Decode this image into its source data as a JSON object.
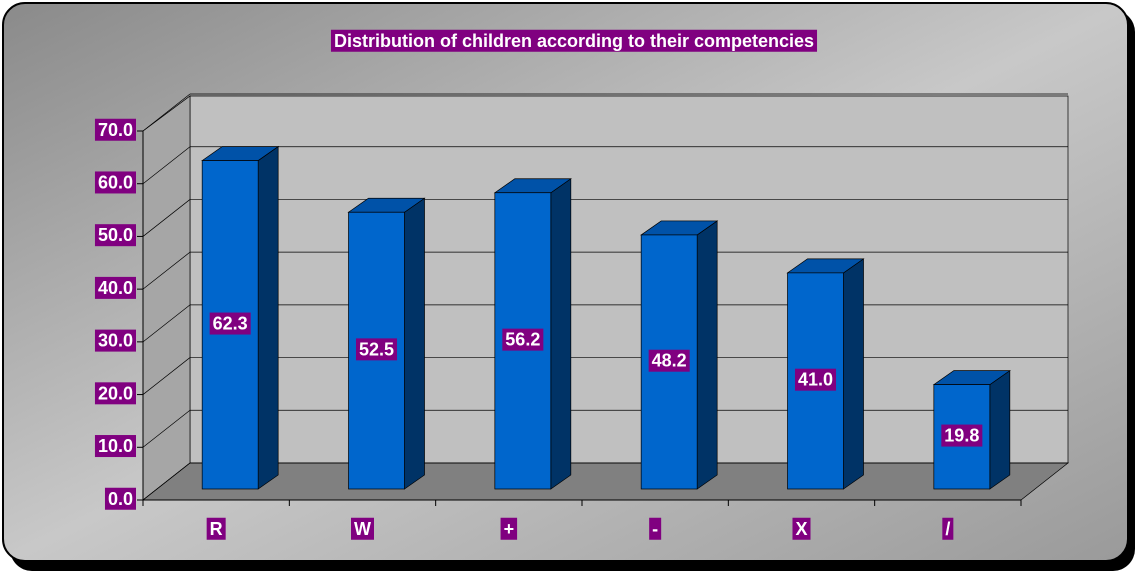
{
  "chart_data": {
    "type": "bar3d",
    "title": "Distribution of children according to their competencies",
    "categories": [
      "R",
      "W",
      "+",
      "-",
      "X",
      "/"
    ],
    "values": [
      62.3,
      52.5,
      56.2,
      48.2,
      41.0,
      19.8
    ],
    "value_labels": [
      "62.3",
      "52.5",
      "56.2",
      "48.2",
      "41.0",
      "19.8"
    ],
    "color": "#0066cc",
    "ylim": [
      0,
      70
    ],
    "yticks": [
      {
        "value": 0,
        "label": "0.0"
      },
      {
        "value": 10,
        "label": "10.0"
      },
      {
        "value": 20,
        "label": "20.0"
      },
      {
        "value": 30,
        "label": "30.0"
      },
      {
        "value": 40,
        "label": "40.0"
      },
      {
        "value": 50,
        "label": "50.0"
      },
      {
        "value": 60,
        "label": "60.0"
      },
      {
        "value": 70,
        "label": "70.0"
      }
    ],
    "grid": true
  }
}
